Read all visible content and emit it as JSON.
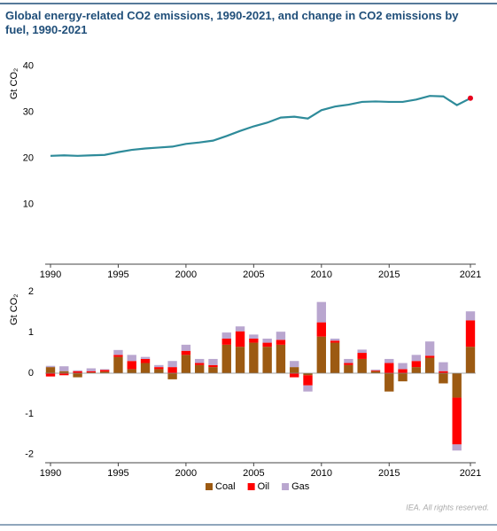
{
  "chart_data": [
    {
      "type": "line",
      "title": "Global energy-related CO2 emissions, 1990-2021, and change in CO2 emissions by fuel, 1990-2021",
      "y_label": "Gt CO₂",
      "x": [
        1990,
        1991,
        1992,
        1993,
        1994,
        1995,
        1996,
        1997,
        1998,
        1999,
        2000,
        2001,
        2002,
        2003,
        2004,
        2005,
        2006,
        2007,
        2008,
        2009,
        2010,
        2011,
        2012,
        2013,
        2014,
        2015,
        2016,
        2017,
        2018,
        2019,
        2020,
        2021
      ],
      "series": [
        {
          "name": "CO2 emissions",
          "color": "#2e8b9a",
          "values": [
            20.5,
            20.6,
            20.5,
            20.6,
            20.7,
            21.3,
            21.8,
            22.1,
            22.3,
            22.5,
            23.1,
            23.4,
            23.8,
            24.8,
            25.9,
            26.9,
            27.7,
            28.8,
            29.0,
            28.6,
            30.4,
            31.2,
            31.6,
            32.2,
            32.3,
            32.2,
            32.2,
            32.7,
            33.5,
            33.4,
            31.5,
            33.0
          ]
        }
      ],
      "last_point_color": "#e8001c",
      "xlim": [
        1990,
        2021
      ],
      "xticks": [
        1990,
        1995,
        2000,
        2005,
        2010,
        2015,
        2021
      ],
      "ylim": [
        -3,
        42
      ],
      "yticks": [
        10,
        20,
        30,
        40
      ]
    },
    {
      "type": "stacked_bar",
      "y_label": "Gt CO₂",
      "x": [
        1990,
        1991,
        1992,
        1993,
        1994,
        1995,
        1996,
        1997,
        1998,
        1999,
        2000,
        2001,
        2002,
        2003,
        2004,
        2005,
        2006,
        2007,
        2008,
        2009,
        2010,
        2011,
        2012,
        2013,
        2014,
        2015,
        2016,
        2017,
        2018,
        2019,
        2020,
        2021
      ],
      "series": [
        {
          "name": "Coal",
          "color": "#9c5a12",
          "values": [
            0.15,
            0.05,
            -0.1,
            0.02,
            0.04,
            0.4,
            0.1,
            0.25,
            0.1,
            -0.15,
            0.45,
            0.2,
            0.15,
            0.7,
            0.65,
            0.75,
            0.65,
            0.7,
            0.15,
            -0.05,
            0.9,
            0.75,
            0.2,
            0.35,
            0.05,
            -0.45,
            -0.2,
            0.15,
            0.38,
            -0.25,
            -0.6,
            0.65
          ]
        },
        {
          "name": "Oil",
          "color": "#ff0000",
          "values": [
            -0.08,
            -0.05,
            0.05,
            0.03,
            0.04,
            0.05,
            0.2,
            0.1,
            0.05,
            0.15,
            0.1,
            0.05,
            0.05,
            0.15,
            0.38,
            0.1,
            0.1,
            0.12,
            -0.1,
            -0.25,
            0.35,
            0.05,
            0.05,
            0.15,
            0.02,
            0.25,
            0.1,
            0.15,
            0.05,
            0.05,
            -1.15,
            0.65
          ]
        },
        {
          "name": "Gas",
          "color": "#b9a6cf",
          "values": [
            0.03,
            0.12,
            0.02,
            0.07,
            0.02,
            0.12,
            0.15,
            0.05,
            0.05,
            0.15,
            0.15,
            0.1,
            0.15,
            0.15,
            0.12,
            0.1,
            0.1,
            0.2,
            0.15,
            -0.15,
            0.5,
            0.05,
            0.1,
            0.08,
            0.02,
            0.1,
            0.15,
            0.15,
            0.35,
            0.22,
            -0.15,
            0.22
          ]
        }
      ],
      "xlim": [
        1990,
        2021
      ],
      "xticks": [
        1990,
        1995,
        2000,
        2005,
        2010,
        2015,
        2021
      ],
      "ylim": [
        -2.2,
        2.2
      ],
      "yticks": [
        -2,
        -1,
        0,
        1,
        2
      ]
    }
  ],
  "credit": "IEA. All rights reserved."
}
